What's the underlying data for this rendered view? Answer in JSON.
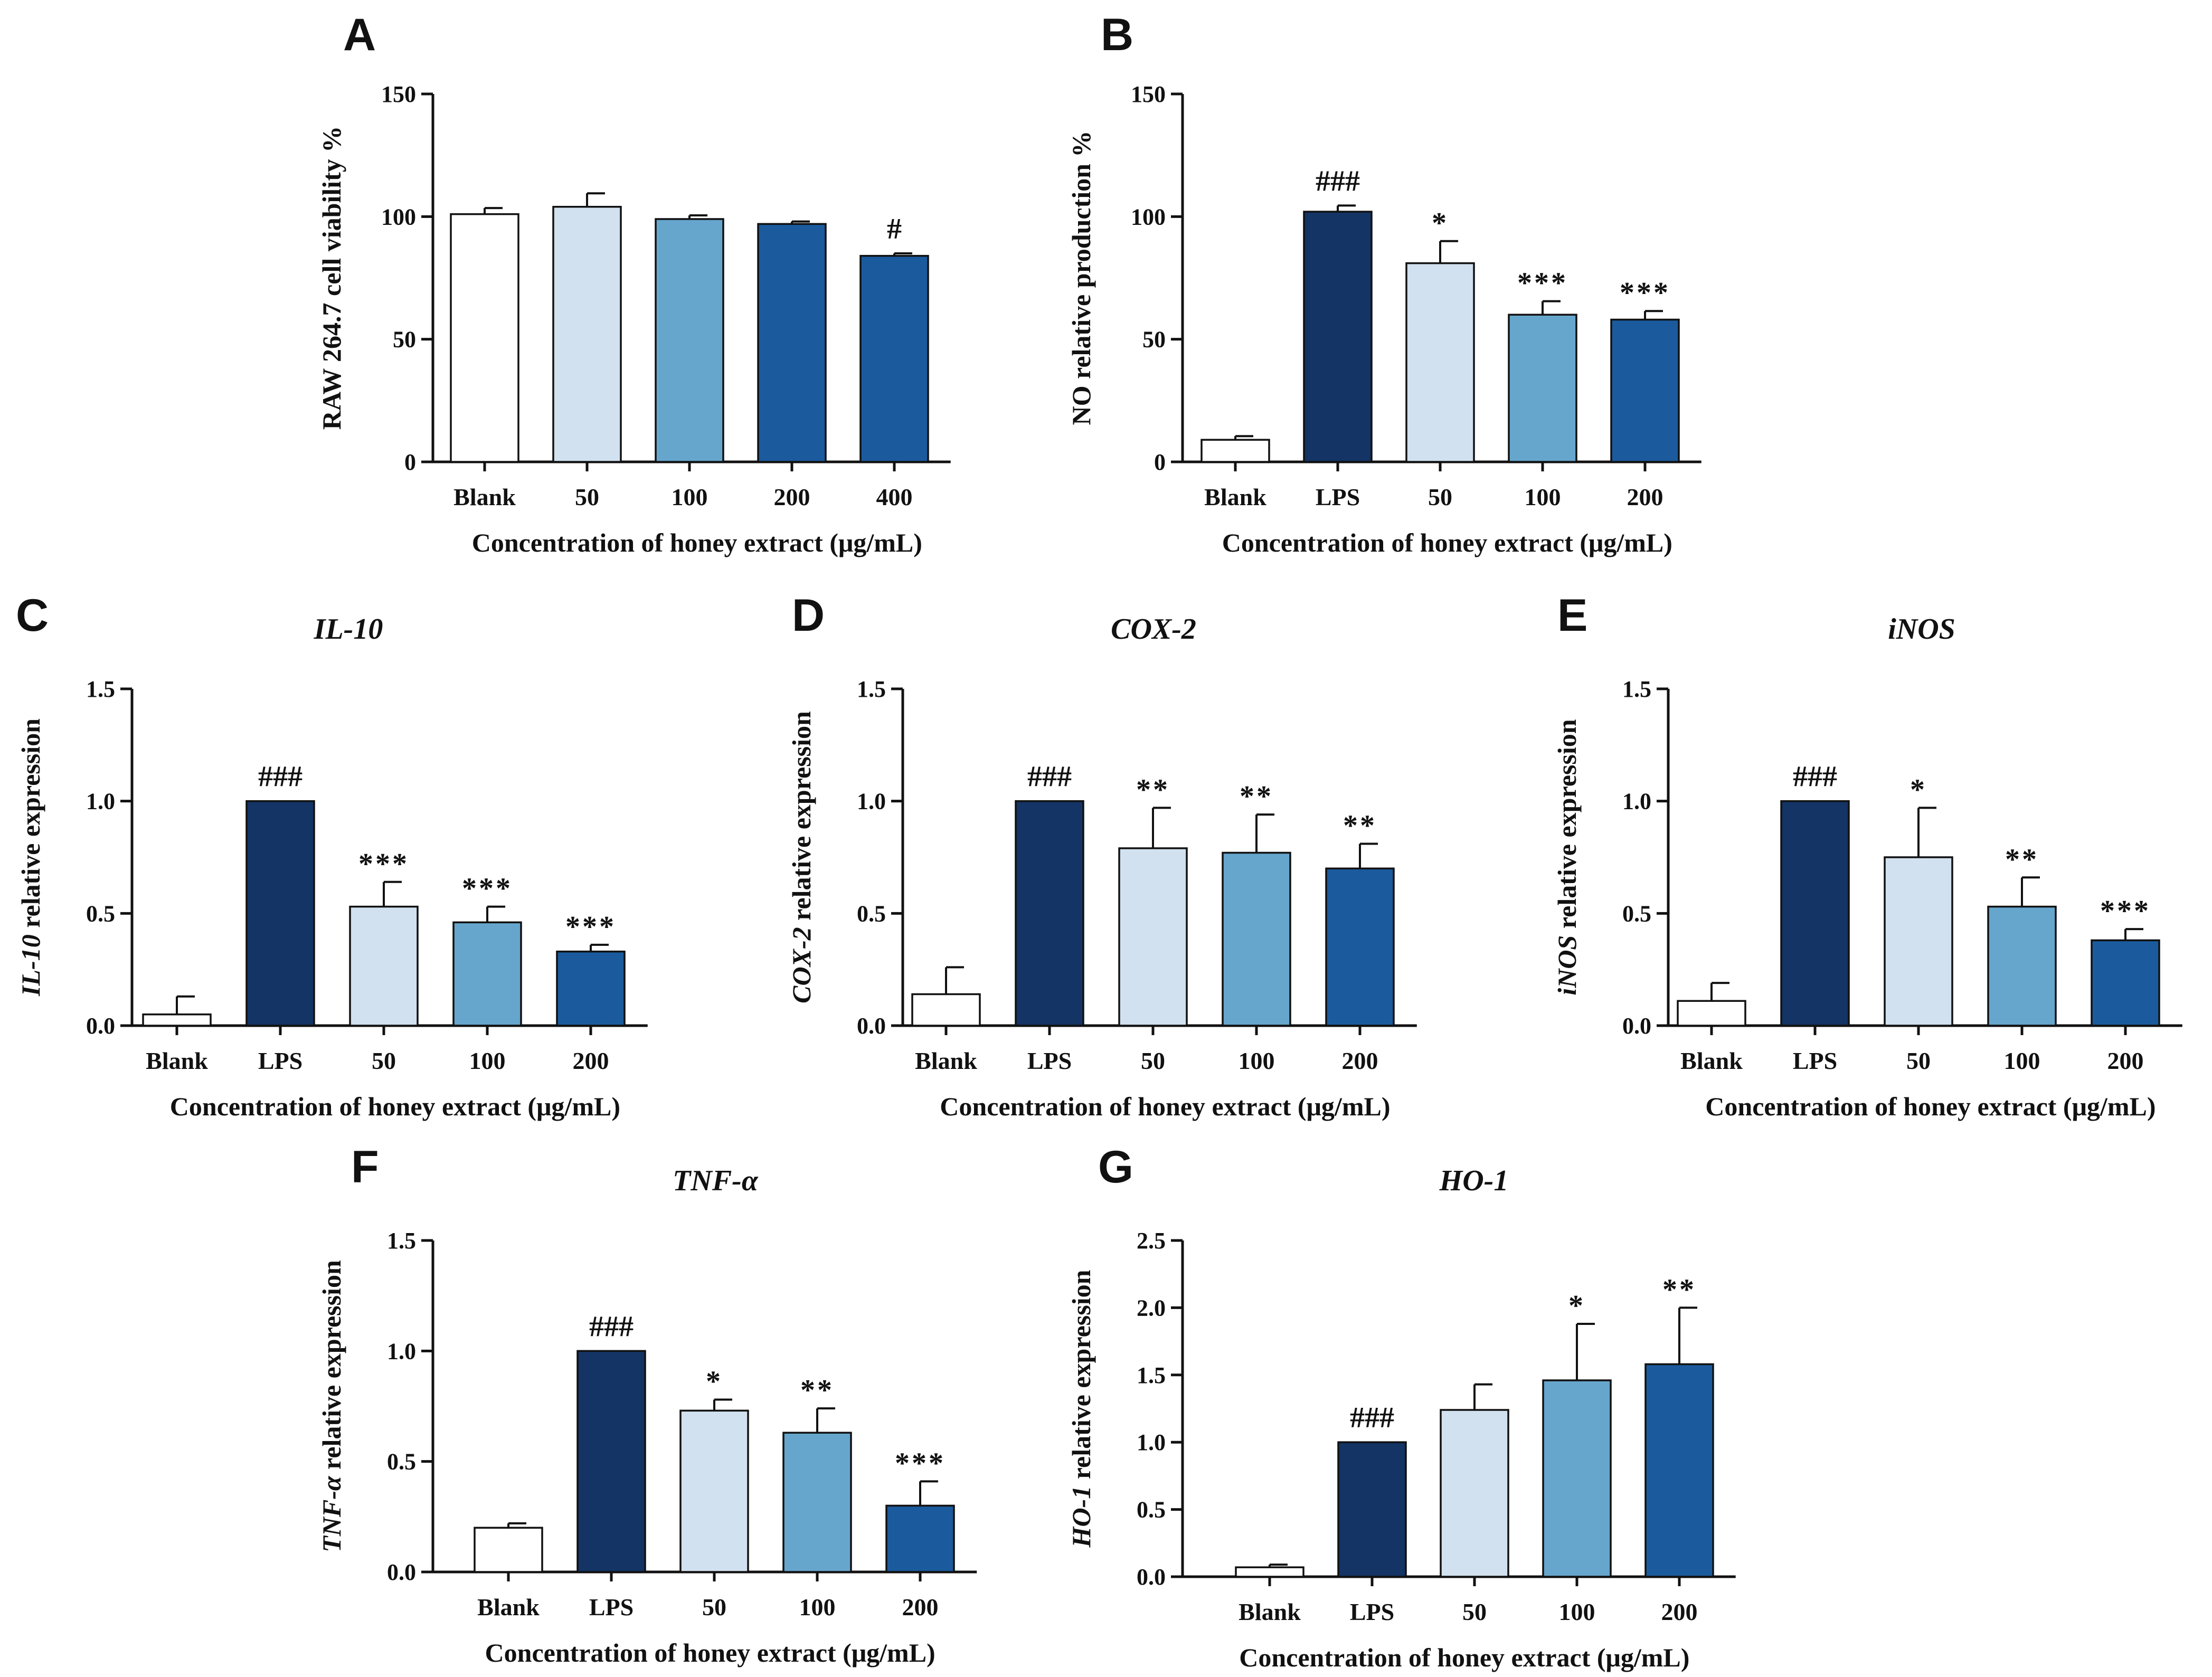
{
  "colors": {
    "blank": "#ffffff",
    "lps": "#133464",
    "c50": "#d2e1ef",
    "c100": "#66a6cd",
    "c200": "#1b5b9d",
    "c400": "#1b5b9d",
    "axis": "#111111"
  },
  "chart_data": [
    {
      "panel": "A",
      "type": "bar",
      "title": "",
      "ylabel": "RAW 264.7 cell viability %",
      "ylabel_italic_prefix": "",
      "xlabel": "Concentration of honey extract (μg/mL)",
      "ylim": [
        0,
        150
      ],
      "yticks": [
        "0",
        "50",
        "100",
        "150"
      ],
      "yticks_values": [
        0,
        50,
        100,
        150
      ],
      "categories": [
        "Blank",
        "50",
        "100",
        "200",
        "400"
      ],
      "color_keys": [
        "blank",
        "c50",
        "c100",
        "c200",
        "c400"
      ],
      "values": [
        101,
        104,
        99,
        97,
        84
      ],
      "errors": [
        2.5,
        5.5,
        1.5,
        1,
        1
      ],
      "annotations": [
        "",
        "",
        "",
        "",
        "#"
      ]
    },
    {
      "panel": "B",
      "type": "bar",
      "title": "",
      "ylabel": "NO relative production %",
      "ylabel_italic_prefix": "",
      "xlabel": "Concentration of honey extract (μg/mL)",
      "ylim": [
        0,
        150
      ],
      "yticks": [
        "0",
        "50",
        "100",
        "150"
      ],
      "yticks_values": [
        0,
        50,
        100,
        150
      ],
      "categories": [
        "Blank",
        "LPS",
        "50",
        "100",
        "200"
      ],
      "color_keys": [
        "blank",
        "lps",
        "c50",
        "c100",
        "c200"
      ],
      "values": [
        9,
        102,
        81,
        60,
        58
      ],
      "errors": [
        1.5,
        2.5,
        9,
        5.5,
        3.5
      ],
      "annotations": [
        "",
        "###",
        "*",
        "***",
        "***"
      ]
    },
    {
      "panel": "C",
      "type": "bar",
      "title": "IL-10",
      "ylabel": " relative expression",
      "ylabel_italic_prefix": "IL-10",
      "xlabel": "Concentration of honey extract (μg/mL)",
      "ylim": [
        0,
        1.5
      ],
      "yticks": [
        "0.0",
        "0.5",
        "1.0",
        "1.5"
      ],
      "yticks_values": [
        0,
        0.5,
        1.0,
        1.5
      ],
      "categories": [
        "Blank",
        "LPS",
        "50",
        "100",
        "200"
      ],
      "color_keys": [
        "blank",
        "lps",
        "c50",
        "c100",
        "c200"
      ],
      "values": [
        0.05,
        1.0,
        0.53,
        0.46,
        0.33
      ],
      "errors": [
        0.08,
        0,
        0.11,
        0.07,
        0.03
      ],
      "annotations": [
        "",
        "###",
        "***",
        "***",
        "***"
      ]
    },
    {
      "panel": "D",
      "type": "bar",
      "title": "COX-2",
      "ylabel": " relative expression",
      "ylabel_italic_prefix": "COX-2",
      "xlabel": "Concentration of honey extract (μg/mL)",
      "ylim": [
        0,
        1.5
      ],
      "yticks": [
        "0.0",
        "0.5",
        "1.0",
        "1.5"
      ],
      "yticks_values": [
        0,
        0.5,
        1.0,
        1.5
      ],
      "categories": [
        "Blank",
        "LPS",
        "50",
        "100",
        "200"
      ],
      "color_keys": [
        "blank",
        "lps",
        "c50",
        "c100",
        "c200"
      ],
      "values": [
        0.14,
        1.0,
        0.79,
        0.77,
        0.7
      ],
      "errors": [
        0.12,
        0,
        0.18,
        0.17,
        0.11
      ],
      "annotations": [
        "",
        "###",
        "**",
        "**",
        "**"
      ]
    },
    {
      "panel": "E",
      "type": "bar",
      "title": "iNOS",
      "ylabel": " relative expression",
      "ylabel_italic_prefix": "iNOS",
      "xlabel": "Concentration of honey extract (μg/mL)",
      "ylim": [
        0,
        1.5
      ],
      "yticks": [
        "0.0",
        "0.5",
        "1.0",
        "1.5"
      ],
      "yticks_values": [
        0,
        0.5,
        1.0,
        1.5
      ],
      "categories": [
        "Blank",
        "LPS",
        "50",
        "100",
        "200"
      ],
      "color_keys": [
        "blank",
        "lps",
        "c50",
        "c100",
        "c200"
      ],
      "values": [
        0.11,
        1.0,
        0.75,
        0.53,
        0.38
      ],
      "errors": [
        0.08,
        0,
        0.22,
        0.13,
        0.05
      ],
      "annotations": [
        "",
        "###",
        "*",
        "**",
        "***"
      ]
    },
    {
      "panel": "F",
      "type": "bar",
      "title": "TNF-α",
      "ylabel": " relative expression",
      "ylabel_italic_prefix": "TNF-α",
      "xlabel": "Concentration of honey extract (μg/mL)",
      "ylim": [
        0,
        1.5
      ],
      "yticks": [
        "0.0",
        "0.5",
        "1.0",
        "1.5"
      ],
      "yticks_values": [
        0,
        0.5,
        1.0,
        1.5
      ],
      "categories": [
        "Blank",
        "LPS",
        "50",
        "100",
        "200"
      ],
      "color_keys": [
        "blank",
        "lps",
        "c50",
        "c100",
        "c200"
      ],
      "values": [
        0.2,
        1.0,
        0.73,
        0.63,
        0.3
      ],
      "errors": [
        0.02,
        0,
        0.05,
        0.11,
        0.11
      ],
      "annotations": [
        "",
        "###",
        "*",
        "**",
        "***"
      ]
    },
    {
      "panel": "G",
      "type": "bar",
      "title": "HO-1",
      "ylabel": " relative expression",
      "ylabel_italic_prefix": "HO-1",
      "xlabel": "Concentration of honey extract (μg/mL)",
      "ylim": [
        0,
        2.5
      ],
      "yticks": [
        "0.0",
        "0.5",
        "1.0",
        "1.5",
        "2.0",
        "2.5"
      ],
      "yticks_values": [
        0,
        0.5,
        1.0,
        1.5,
        2.0,
        2.5
      ],
      "categories": [
        "Blank",
        "LPS",
        "50",
        "100",
        "200"
      ],
      "color_keys": [
        "blank",
        "lps",
        "c50",
        "c100",
        "c200"
      ],
      "values": [
        0.07,
        1.0,
        1.24,
        1.46,
        1.58
      ],
      "errors": [
        0.02,
        0,
        0.19,
        0.42,
        0.42
      ],
      "annotations": [
        "",
        "###",
        "",
        "*",
        "**"
      ]
    }
  ]
}
